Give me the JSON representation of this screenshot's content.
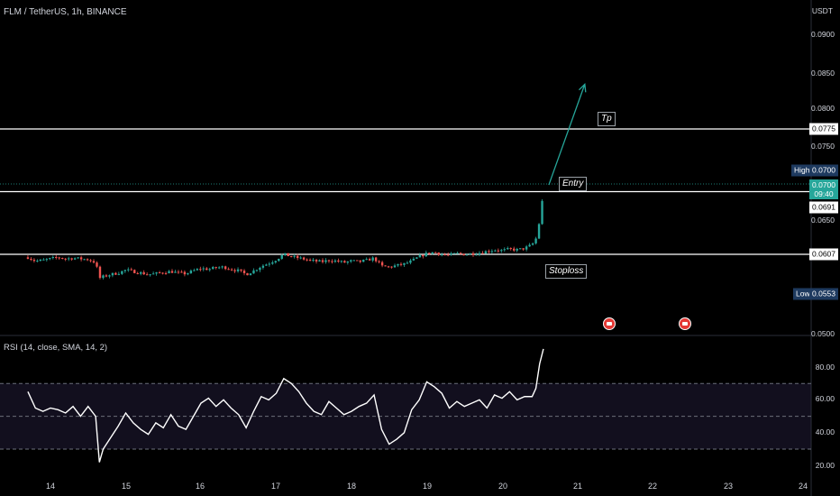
{
  "header": {
    "symbol": "FLM / TetherUS, 1h, BINANCE",
    "currency": "USDT",
    "rsi_label": "RSI (14, close, SMA, 14, 2)"
  },
  "price_axis": {
    "ticks": [
      "0.0900",
      "0.0850",
      "0.0800",
      "0.0750",
      "0.0650",
      "0.0500"
    ]
  },
  "rsi_axis": {
    "ticks": [
      "80.00",
      "60.00",
      "40.00",
      "20.00"
    ]
  },
  "time_axis": {
    "ticks": [
      "14",
      "15",
      "16",
      "17",
      "18",
      "19",
      "20",
      "21",
      "22",
      "23",
      "24"
    ]
  },
  "price_tags": {
    "tp_level": "0.0775",
    "high_label": "High",
    "high_value": "0.0700",
    "last_price": "0.0700",
    "countdown": "09:40",
    "entry_level": "0.0691",
    "stop_level": "0.0607",
    "low_label": "Low",
    "low_value": "0.0553"
  },
  "annotations": {
    "tp": "Tp",
    "entry": "Entry",
    "stoploss": "Stoploss"
  },
  "colors": {
    "up": "#26a69a",
    "down": "#ef5350",
    "background": "#000000",
    "rsi_band": "#120f1e"
  },
  "chart_data": {
    "type": "candlestick",
    "symbol": "FLM/USDT",
    "interval": "1h",
    "exchange": "BINANCE",
    "x_range": [
      13.7,
      24
    ],
    "ylim": [
      0.05,
      0.0925
    ],
    "levels": {
      "tp": 0.0775,
      "entry": 0.0691,
      "stoploss": 0.0607
    },
    "close_path": [
      [
        13.7,
        0.0603
      ],
      [
        13.8,
        0.0598
      ],
      [
        13.9,
        0.0599
      ],
      [
        14.0,
        0.0601
      ],
      [
        14.1,
        0.0603
      ],
      [
        14.2,
        0.0601
      ],
      [
        14.3,
        0.0602
      ],
      [
        14.4,
        0.0601
      ],
      [
        14.5,
        0.06
      ],
      [
        14.6,
        0.0596
      ],
      [
        14.65,
        0.0575
      ],
      [
        14.7,
        0.0577
      ],
      [
        14.8,
        0.058
      ],
      [
        14.9,
        0.0582
      ],
      [
        15.0,
        0.0586
      ],
      [
        15.1,
        0.0584
      ],
      [
        15.2,
        0.0582
      ],
      [
        15.3,
        0.058
      ],
      [
        15.4,
        0.0581
      ],
      [
        15.5,
        0.0583
      ],
      [
        15.6,
        0.0584
      ],
      [
        15.7,
        0.0582
      ],
      [
        15.8,
        0.0581
      ],
      [
        15.9,
        0.0585
      ],
      [
        16.0,
        0.0588
      ],
      [
        16.1,
        0.0587
      ],
      [
        16.2,
        0.0589
      ],
      [
        16.3,
        0.059
      ],
      [
        16.4,
        0.0587
      ],
      [
        16.5,
        0.0585
      ],
      [
        16.6,
        0.058
      ],
      [
        16.7,
        0.0585
      ],
      [
        16.8,
        0.0591
      ],
      [
        16.9,
        0.0595
      ],
      [
        17.0,
        0.06
      ],
      [
        17.1,
        0.0607
      ],
      [
        17.2,
        0.0604
      ],
      [
        17.3,
        0.0602
      ],
      [
        17.4,
        0.06
      ],
      [
        17.5,
        0.0598
      ],
      [
        17.6,
        0.0597
      ],
      [
        17.7,
        0.0599
      ],
      [
        17.8,
        0.0598
      ],
      [
        17.9,
        0.0596
      ],
      [
        18.0,
        0.0598
      ],
      [
        18.1,
        0.0597
      ],
      [
        18.2,
        0.0599
      ],
      [
        18.3,
        0.0602
      ],
      [
        18.4,
        0.0591
      ],
      [
        18.5,
        0.059
      ],
      [
        18.6,
        0.0592
      ],
      [
        18.7,
        0.0594
      ],
      [
        18.8,
        0.0598
      ],
      [
        18.9,
        0.0604
      ],
      [
        19.0,
        0.0608
      ],
      [
        19.1,
        0.061
      ],
      [
        19.2,
        0.0607
      ],
      [
        19.3,
        0.0606
      ],
      [
        19.4,
        0.0608
      ],
      [
        19.5,
        0.0607
      ],
      [
        19.6,
        0.0608
      ],
      [
        19.7,
        0.0609
      ],
      [
        19.8,
        0.0611
      ],
      [
        19.9,
        0.0613
      ],
      [
        20.0,
        0.0612
      ],
      [
        20.1,
        0.0614
      ],
      [
        20.2,
        0.0613
      ],
      [
        20.3,
        0.0615
      ],
      [
        20.4,
        0.062
      ],
      [
        20.45,
        0.0628
      ],
      [
        20.5,
        0.0652
      ],
      [
        20.52,
        0.066
      ],
      [
        20.55,
        0.07
      ]
    ],
    "projection": {
      "from": [
        20.55,
        0.07
      ],
      "to": [
        21.1,
        0.0835
      ]
    },
    "rsi": {
      "ylim": [
        15,
        95
      ],
      "levels": [
        70,
        50,
        30
      ],
      "values": [
        [
          13.7,
          65
        ],
        [
          13.8,
          55
        ],
        [
          13.9,
          53
        ],
        [
          14.0,
          55
        ],
        [
          14.1,
          54
        ],
        [
          14.2,
          52
        ],
        [
          14.3,
          56
        ],
        [
          14.4,
          50
        ],
        [
          14.5,
          56
        ],
        [
          14.6,
          50
        ],
        [
          14.65,
          22
        ],
        [
          14.7,
          30
        ],
        [
          14.8,
          37
        ],
        [
          14.9,
          44
        ],
        [
          15.0,
          52
        ],
        [
          15.1,
          46
        ],
        [
          15.2,
          42
        ],
        [
          15.3,
          39
        ],
        [
          15.4,
          46
        ],
        [
          15.5,
          43
        ],
        [
          15.6,
          51
        ],
        [
          15.7,
          44
        ],
        [
          15.8,
          42
        ],
        [
          15.9,
          50
        ],
        [
          16.0,
          58
        ],
        [
          16.1,
          61
        ],
        [
          16.2,
          56
        ],
        [
          16.3,
          60
        ],
        [
          16.4,
          55
        ],
        [
          16.5,
          51
        ],
        [
          16.6,
          43
        ],
        [
          16.7,
          53
        ],
        [
          16.8,
          62
        ],
        [
          16.9,
          60
        ],
        [
          17.0,
          64
        ],
        [
          17.1,
          73
        ],
        [
          17.2,
          70
        ],
        [
          17.3,
          65
        ],
        [
          17.4,
          58
        ],
        [
          17.5,
          53
        ],
        [
          17.6,
          51
        ],
        [
          17.7,
          59
        ],
        [
          17.8,
          55
        ],
        [
          17.9,
          51
        ],
        [
          18.0,
          53
        ],
        [
          18.1,
          56
        ],
        [
          18.2,
          58
        ],
        [
          18.3,
          63
        ],
        [
          18.4,
          42
        ],
        [
          18.5,
          33
        ],
        [
          18.6,
          36
        ],
        [
          18.7,
          40
        ],
        [
          18.8,
          54
        ],
        [
          18.9,
          60
        ],
        [
          19.0,
          71
        ],
        [
          19.1,
          68
        ],
        [
          19.2,
          64
        ],
        [
          19.3,
          55
        ],
        [
          19.4,
          59
        ],
        [
          19.5,
          56
        ],
        [
          19.6,
          58
        ],
        [
          19.7,
          60
        ],
        [
          19.8,
          55
        ],
        [
          19.9,
          63
        ],
        [
          20.0,
          61
        ],
        [
          20.1,
          65
        ],
        [
          20.2,
          60
        ],
        [
          20.3,
          62
        ],
        [
          20.4,
          62
        ],
        [
          20.45,
          67
        ],
        [
          20.5,
          82
        ],
        [
          20.55,
          91
        ]
      ]
    }
  }
}
